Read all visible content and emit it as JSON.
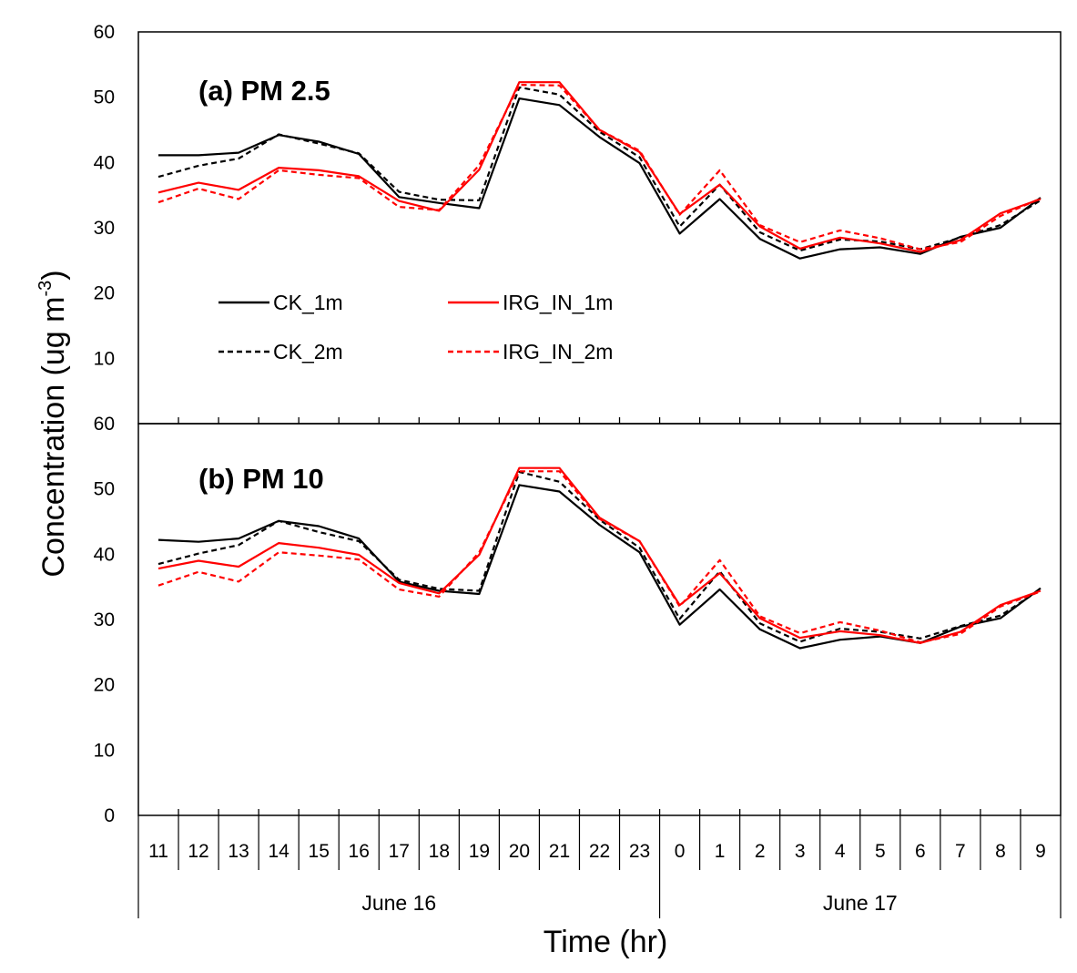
{
  "chart_data": [
    {
      "type": "line",
      "title": "(a) PM 2.5",
      "ylabel": "Concentration (ug m-3)",
      "xlabel": "Time (hr)",
      "ylim": [
        0,
        60
      ],
      "yticks": [
        "60",
        "50",
        "40",
        "30",
        "20",
        "10"
      ],
      "categories": [
        "11",
        "12",
        "13",
        "14",
        "15",
        "16",
        "17",
        "18",
        "19",
        "20",
        "21",
        "22",
        "23",
        "0",
        "1",
        "2",
        "3",
        "4",
        "5",
        "6",
        "7",
        "8",
        "9"
      ],
      "series": [
        {
          "name": "CK_1m",
          "color": "#000000",
          "dash": false,
          "values": [
            41.1,
            41.1,
            41.5,
            44.2,
            43.2,
            41.3,
            34.7,
            33.8,
            33.0,
            49.8,
            48.8,
            43.9,
            39.9,
            29.1,
            34.4,
            28.3,
            25.3,
            26.7,
            27.0,
            26.0,
            28.6,
            30.0,
            34.6
          ]
        },
        {
          "name": "CK_2m",
          "color": "#000000",
          "dash": true,
          "values": [
            37.8,
            39.5,
            40.6,
            44.3,
            42.9,
            41.4,
            35.5,
            34.3,
            34.2,
            51.5,
            50.4,
            44.7,
            40.8,
            30.2,
            36.6,
            29.3,
            26.5,
            28.2,
            27.9,
            26.7,
            28.5,
            30.4,
            34.2
          ]
        },
        {
          "name": "IRG_IN_1m",
          "color": "#ff0000",
          "dash": false,
          "values": [
            35.4,
            36.9,
            35.8,
            39.2,
            38.8,
            37.9,
            34.1,
            32.6,
            38.9,
            52.3,
            52.3,
            45.0,
            41.6,
            32.1,
            36.6,
            30.2,
            26.8,
            28.5,
            27.6,
            26.3,
            28.1,
            32.2,
            34.4
          ]
        },
        {
          "name": "IRG_IN_2m",
          "color": "#ff0000",
          "dash": true,
          "values": [
            33.9,
            36.0,
            34.4,
            38.8,
            38.1,
            37.6,
            33.2,
            32.7,
            39.6,
            51.9,
            51.8,
            45.0,
            41.8,
            32.0,
            38.8,
            30.4,
            27.8,
            29.6,
            28.4,
            26.7,
            27.8,
            31.8,
            34.5
          ]
        }
      ]
    },
    {
      "type": "line",
      "title": "(b) PM 10",
      "ylim": [
        0,
        60
      ],
      "yticks": [
        "60",
        "50",
        "40",
        "30",
        "20",
        "10",
        "0"
      ],
      "categories": [
        "11",
        "12",
        "13",
        "14",
        "15",
        "16",
        "17",
        "18",
        "19",
        "20",
        "21",
        "22",
        "23",
        "0",
        "1",
        "2",
        "3",
        "4",
        "5",
        "6",
        "7",
        "8",
        "9"
      ],
      "series": [
        {
          "name": "CK_1m",
          "color": "#000000",
          "dash": false,
          "values": [
            42.2,
            41.9,
            42.4,
            45.1,
            44.3,
            42.4,
            35.8,
            34.4,
            33.9,
            50.6,
            49.6,
            44.5,
            40.3,
            29.2,
            34.6,
            28.5,
            25.6,
            26.9,
            27.4,
            26.4,
            28.9,
            30.2,
            34.8
          ]
        },
        {
          "name": "CK_2m",
          "color": "#000000",
          "dash": true,
          "values": [
            38.5,
            40.1,
            41.4,
            45.1,
            43.4,
            42.0,
            36.1,
            34.7,
            34.4,
            52.6,
            51.1,
            45.3,
            41.0,
            30.1,
            37.4,
            29.4,
            26.6,
            28.6,
            28.1,
            27.1,
            29.0,
            30.6,
            34.6
          ]
        },
        {
          "name": "IRG_IN_1m",
          "color": "#ff0000",
          "dash": false,
          "values": [
            37.8,
            39.0,
            38.1,
            41.7,
            41.0,
            39.9,
            35.6,
            34.0,
            39.9,
            53.2,
            53.2,
            45.6,
            42.0,
            32.2,
            37.1,
            30.2,
            27.2,
            28.2,
            27.6,
            26.4,
            28.1,
            32.2,
            34.4
          ]
        },
        {
          "name": "IRG_IN_2m",
          "color": "#ff0000",
          "dash": true,
          "values": [
            35.2,
            37.3,
            35.8,
            40.3,
            39.8,
            39.2,
            34.6,
            33.5,
            40.3,
            52.7,
            52.7,
            45.4,
            42.0,
            32.0,
            39.1,
            30.5,
            27.9,
            29.6,
            28.3,
            26.5,
            27.8,
            32.0,
            34.3
          ]
        }
      ]
    }
  ],
  "x_axis": {
    "groups": [
      {
        "label": "June 16",
        "start": 0,
        "end": 13
      },
      {
        "label": "June 17",
        "start": 13,
        "end": 23
      }
    ]
  },
  "legend": [
    "CK_1m",
    "IRG_IN_1m",
    "CK_2m",
    "IRG_IN_2m"
  ]
}
